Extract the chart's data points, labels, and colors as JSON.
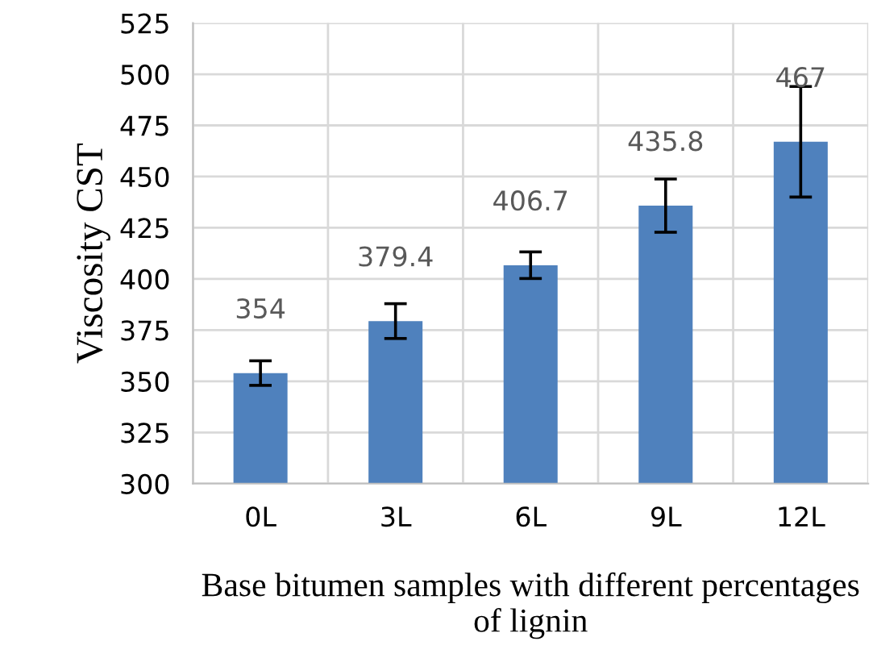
{
  "chart_data": {
    "type": "bar",
    "xlabel": "Base bitumen samples with different percentages of lignin",
    "ylabel": "Viscosity CST",
    "categories": [
      "0L",
      "3L",
      "6L",
      "9L",
      "12L"
    ],
    "values": [
      354,
      379.4,
      406.7,
      435.8,
      467
    ],
    "errors": [
      6,
      8.5,
      6.5,
      13,
      27
    ],
    "color": "#4f81bd",
    "data_labels": true,
    "grid": true,
    "ylim": [
      300,
      525
    ],
    "yticks": [
      300,
      325,
      350,
      375,
      400,
      425,
      450,
      475,
      500,
      525
    ]
  }
}
